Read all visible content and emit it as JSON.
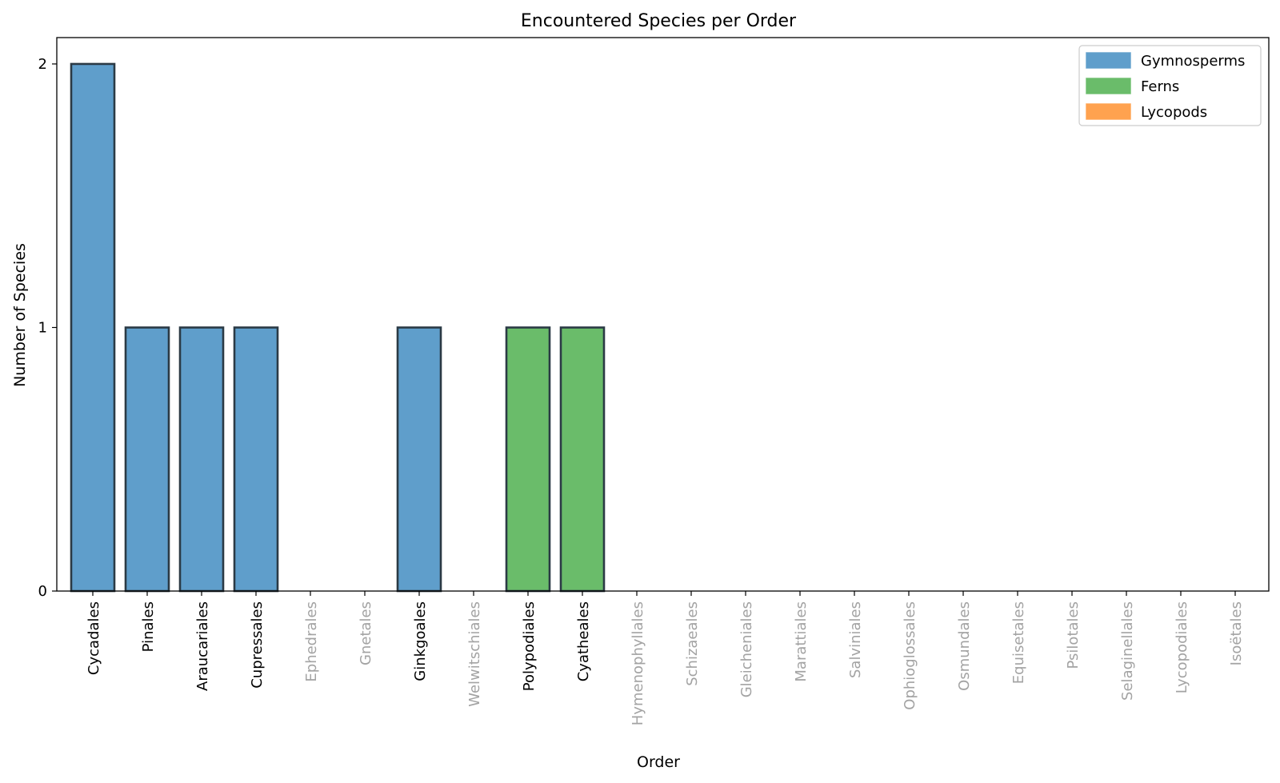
{
  "chart_data": {
    "type": "bar",
    "title": "Encountered Species per Order",
    "xlabel": "Order",
    "ylabel": "Number of Species",
    "ylim": [
      0,
      2.1
    ],
    "yticks": [
      0,
      1,
      2
    ],
    "grid": false,
    "legend_position": "top-right",
    "colors": {
      "Gymnosperms": "#5f9ecb",
      "Ferns": "#6abc6a",
      "Lycopods": "#ffa24f",
      "bar_edge": "#2b3a45",
      "active_label": "#000000",
      "inactive_label": "#a3a3a3"
    },
    "legend": [
      {
        "label": "Gymnosperms",
        "group": "Gymnosperms"
      },
      {
        "label": "Ferns",
        "group": "Ferns"
      },
      {
        "label": "Lycopods",
        "group": "Lycopods"
      }
    ],
    "categories": [
      "Cycadales",
      "Pinales",
      "Araucariales",
      "Cupressales",
      "Ephedrales",
      "Gnetales",
      "Ginkgoales",
      "Welwitschiales",
      "Polypodiales",
      "Cyatheales",
      "Hymenophyllales",
      "Schizaeales",
      "Gleicheniales",
      "Marattiales",
      "Salviniales",
      "Ophioglossales",
      "Osmundales",
      "Equisetales",
      "Psilotales",
      "Selaginellales",
      "Lycopodiales",
      "Isoëtales"
    ],
    "values": [
      2,
      1,
      1,
      1,
      0,
      0,
      1,
      0,
      1,
      1,
      0,
      0,
      0,
      0,
      0,
      0,
      0,
      0,
      0,
      0,
      0,
      0
    ],
    "groups": [
      "Gymnosperms",
      "Gymnosperms",
      "Gymnosperms",
      "Gymnosperms",
      "Gymnosperms",
      "Gymnosperms",
      "Gymnosperms",
      "Gymnosperms",
      "Ferns",
      "Ferns",
      "Ferns",
      "Ferns",
      "Ferns",
      "Ferns",
      "Ferns",
      "Ferns",
      "Ferns",
      "Ferns",
      "Ferns",
      "Lycopods",
      "Lycopods",
      "Lycopods"
    ]
  }
}
